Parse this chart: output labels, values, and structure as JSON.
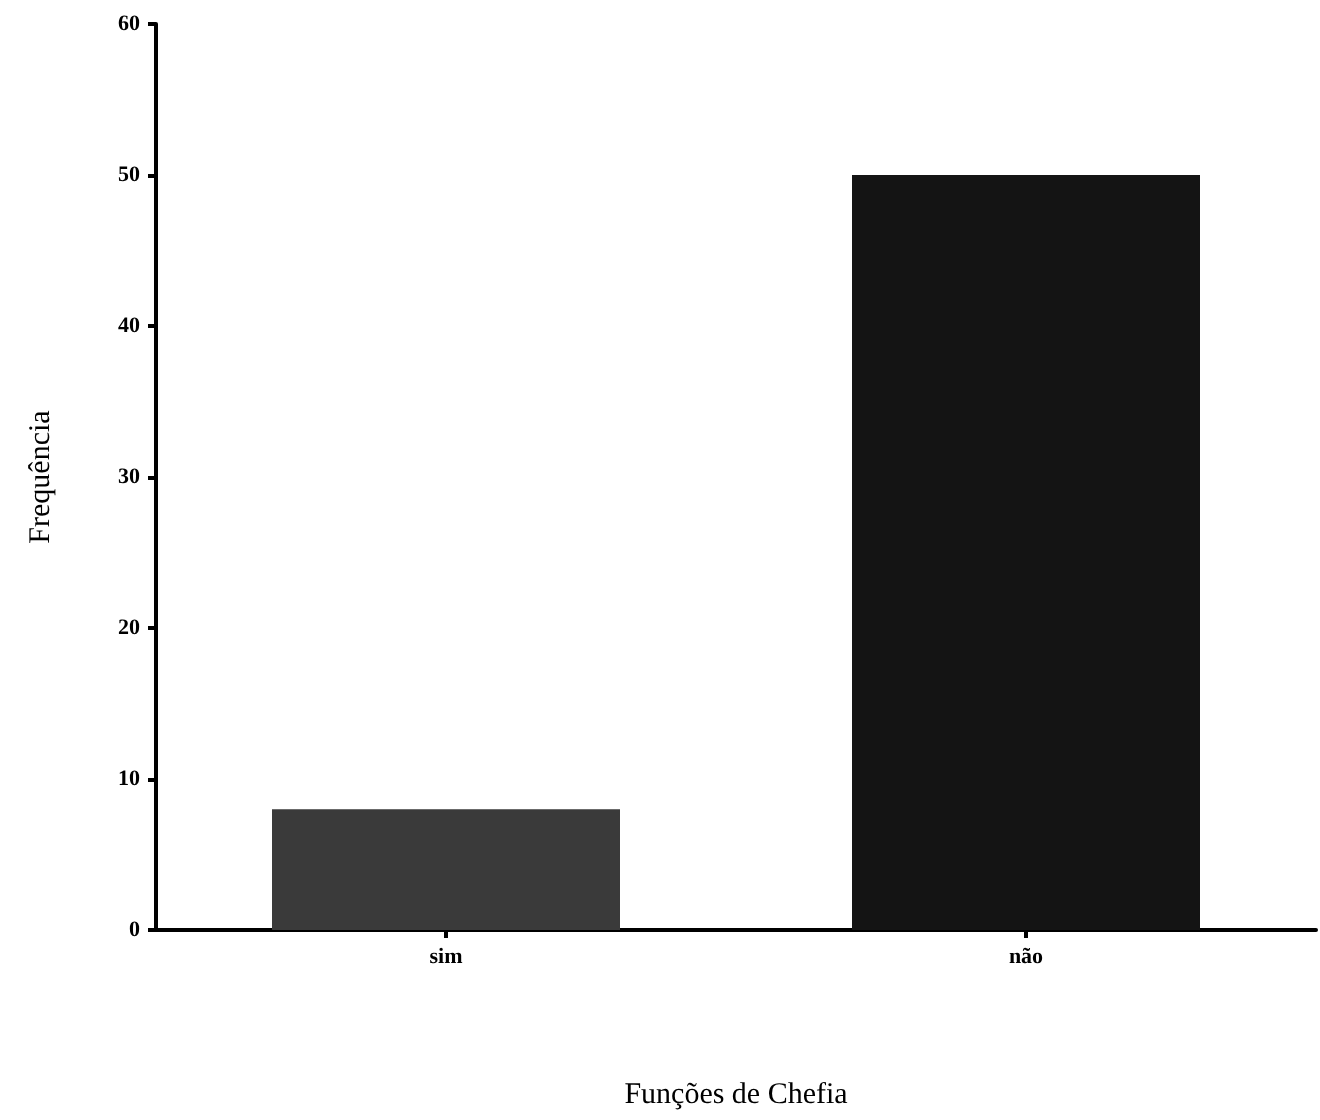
{
  "chart_data": {
    "type": "bar",
    "xlabel": "Funções de Chefia",
    "ylabel": "Frequência",
    "categories": [
      "sim",
      "não"
    ],
    "values": [
      8,
      50
    ],
    "colors": [
      "#3a3a3a",
      "#141414"
    ],
    "ylim": [
      0,
      60
    ],
    "yticks": [
      0,
      10,
      20,
      30,
      40,
      50,
      60
    ],
    "grid": false
  }
}
